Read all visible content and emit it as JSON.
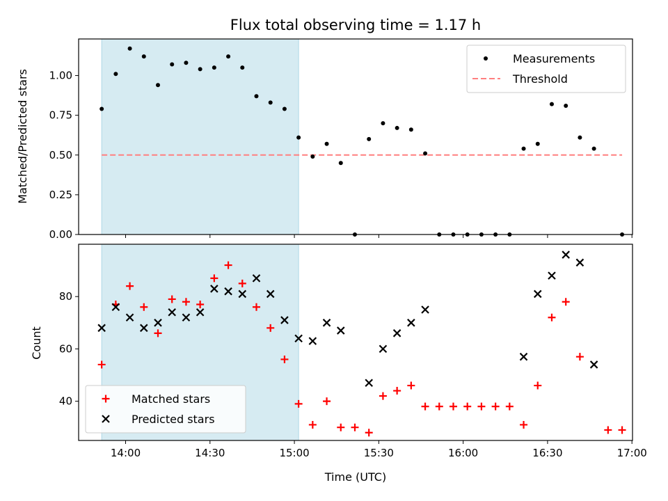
{
  "chart_data": {
    "type": "scatter",
    "title": "Flux total observing time = 1.17 h",
    "xlabel": "Time (UTC)",
    "x_tick_labels": [
      "14:00",
      "14:30",
      "15:00",
      "15:30",
      "16:00",
      "16:30",
      "17:00"
    ],
    "x_tick_minutes": [
      840,
      870,
      900,
      930,
      960,
      990,
      1020
    ],
    "xlim_minutes": [
      823.3,
      1020.2
    ],
    "shaded_interval_minutes": [
      831.5,
      901.5
    ],
    "shade_color": "#add8e6",
    "panels": [
      {
        "ylabel": "Matched/Predicted stars",
        "ylim": [
          0,
          1.23
        ],
        "y_ticks": [
          0.0,
          0.25,
          0.5,
          0.75,
          1.0
        ],
        "y_tick_labels": [
          "0.00",
          "0.25",
          "0.50",
          "0.75",
          "1.00"
        ],
        "legend": {
          "position": "upper right",
          "entries": [
            "Measurements",
            "Threshold"
          ]
        },
        "threshold": {
          "name": "Threshold",
          "value": 0.5,
          "x_range_minutes": [
            831.5,
            1016.5
          ],
          "color": "#ff7f7f"
        },
        "measurements": {
          "name": "Measurements",
          "color": "#000000",
          "x": [
            831.5,
            836.5,
            841.5,
            846.5,
            851.5,
            856.5,
            861.5,
            866.5,
            871.5,
            876.5,
            881.5,
            886.5,
            891.5,
            896.5,
            901.5,
            906.5,
            911.5,
            916.5,
            921.5,
            926.5,
            931.5,
            936.5,
            941.5,
            946.5,
            951.5,
            956.5,
            961.5,
            966.5,
            971.5,
            976.5,
            981.5,
            986.5,
            991.5,
            996.5,
            1001.5,
            1006.5,
            1016.5
          ],
          "y": [
            0.79,
            1.01,
            1.17,
            1.12,
            0.94,
            1.07,
            1.08,
            1.04,
            1.05,
            1.12,
            1.05,
            0.87,
            0.83,
            0.79,
            0.61,
            0.49,
            0.57,
            0.45,
            0.0,
            0.6,
            0.7,
            0.67,
            0.66,
            0.51,
            0.0,
            0.0,
            0.0,
            0.0,
            0.0,
            0.0,
            0.54,
            0.57,
            0.82,
            0.81,
            0.61,
            0.54,
            0.0
          ]
        }
      },
      {
        "ylabel": "Count",
        "ylim": [
          25,
          100
        ],
        "y_ticks": [
          40,
          60,
          80
        ],
        "y_tick_labels": [
          "40",
          "60",
          "80"
        ],
        "legend": {
          "position": "lower left",
          "entries": [
            "Matched stars",
            "Predicted stars"
          ]
        },
        "series": [
          {
            "name": "Matched stars",
            "marker": "plus",
            "color": "#ff0000",
            "x": [
              831.5,
              836.5,
              841.5,
              846.5,
              851.5,
              856.5,
              861.5,
              866.5,
              871.5,
              876.5,
              881.5,
              886.5,
              891.5,
              896.5,
              901.5,
              906.5,
              911.5,
              916.5,
              921.5,
              926.5,
              931.5,
              936.5,
              941.5,
              946.5,
              951.5,
              956.5,
              961.5,
              966.5,
              971.5,
              976.5,
              981.5,
              986.5,
              991.5,
              996.5,
              1001.5,
              1011.5,
              1016.5
            ],
            "y": [
              54,
              77,
              84,
              76,
              66,
              79,
              78,
              77,
              87,
              92,
              85,
              76,
              68,
              56,
              39,
              31,
              40,
              30,
              30,
              28,
              42,
              44,
              46,
              38,
              38,
              38,
              38,
              38,
              38,
              38,
              31,
              46,
              72,
              78,
              57,
              29,
              29
            ]
          },
          {
            "name": "Predicted stars",
            "marker": "x",
            "color": "#000000",
            "x": [
              831.5,
              836.5,
              841.5,
              846.5,
              851.5,
              856.5,
              861.5,
              866.5,
              871.5,
              876.5,
              881.5,
              886.5,
              891.5,
              896.5,
              901.5,
              906.5,
              911.5,
              916.5,
              926.5,
              931.5,
              936.5,
              941.5,
              946.5,
              981.5,
              986.5,
              991.5,
              996.5,
              1001.5,
              1006.5
            ],
            "y": [
              68,
              76,
              72,
              68,
              70,
              74,
              72,
              74,
              83,
              82,
              81,
              87,
              81,
              71,
              64,
              63,
              70,
              67,
              47,
              60,
              66,
              70,
              75,
              57,
              81,
              88,
              96,
              93,
              54
            ]
          }
        ]
      }
    ]
  }
}
